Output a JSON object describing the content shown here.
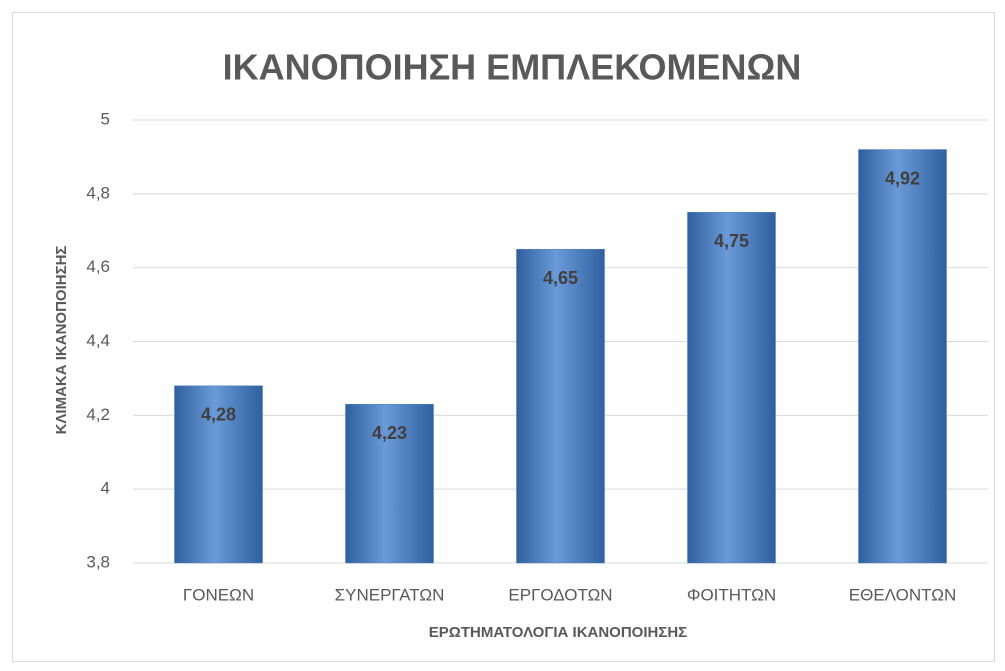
{
  "chart_data": {
    "type": "bar",
    "title": "ΙΚΑΝΟΠΟΙΗΣΗ ΕΜΠΛΕΚΟΜΕΝΩΝ",
    "x_label": "ΕΡΩΤΗΜΑΤΟΛΟΓΙΑ ΙΚΑΝΟΠΟΙΗΣΗΣ",
    "y_label": "ΚΛΙΜΑΚΑ ΙΚΑΝΟΠΟΙΗΣΗΣ",
    "categories": [
      "ΓΟΝΕΩΝ",
      "ΣΥΝΕΡΓΑΤΩΝ",
      "ΕΡΓΟΔΟΤΩΝ",
      "ΦΟΙΤΗΤΩΝ",
      "ΕΘΕΛΟΝΤΩΝ"
    ],
    "values": [
      4.28,
      4.23,
      4.65,
      4.75,
      4.92
    ],
    "value_labels": [
      "4,28",
      "4,23",
      "4,65",
      "4,75",
      "4,92"
    ],
    "color": "#4f81bd",
    "ylim": [
      3.8,
      5
    ],
    "yticks": [
      {
        "value": 3.8,
        "label": "3,8"
      },
      4,
      {
        "value": 4.2,
        "label": "4,2"
      },
      {
        "value": 4.4,
        "label": "4,4"
      },
      {
        "value": 4.6,
        "label": "4,6"
      },
      {
        "value": 4.8,
        "label": "4,8"
      },
      5
    ],
    "grid": true
  }
}
